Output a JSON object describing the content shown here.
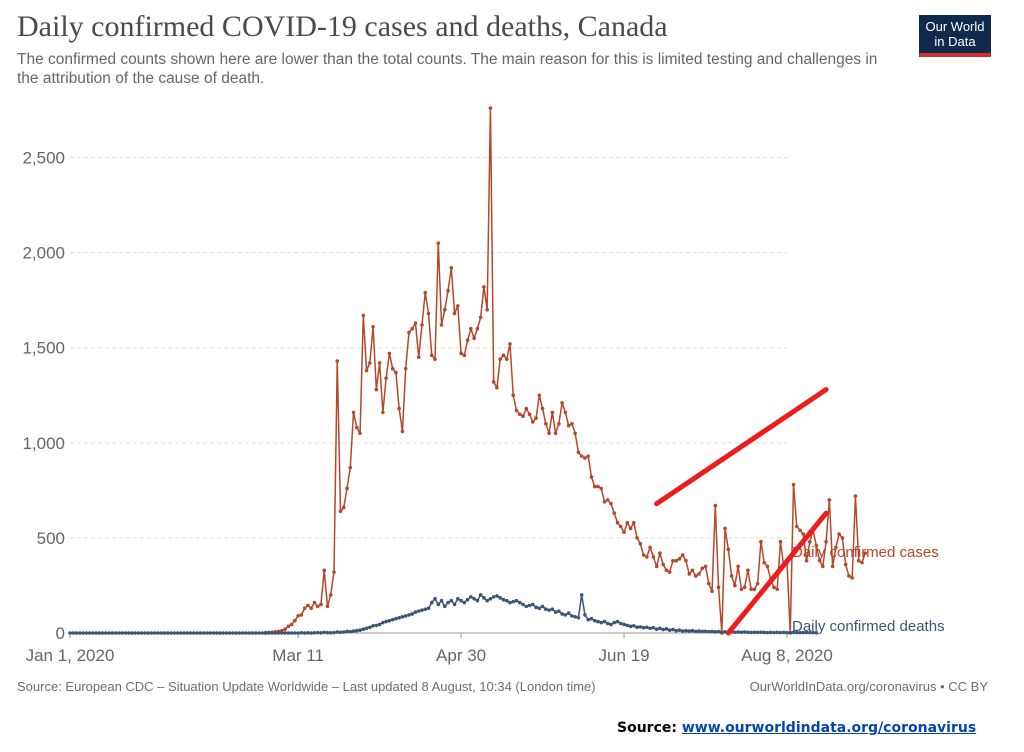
{
  "header": {
    "title": "Daily confirmed COVID-19 cases and deaths, Canada",
    "subtitle": "The confirmed counts shown here are lower than the total counts. The main reason for this is limited testing and challenges in the attribution of the cause of death.",
    "logo_line1": "Our World",
    "logo_line2": "in Data"
  },
  "footer": {
    "source": "Source: European CDC – Situation Update Worldwide – Last updated 8 August, 10:34 (London time)",
    "credit": "OurWorldInData.org/coronavirus • CC BY"
  },
  "source_note": {
    "label": "Source:",
    "link": "www.ourworldindata.org/coronavirus"
  },
  "colors": {
    "cases": "#b5472a",
    "deaths": "#3d5575",
    "annotation": "#ee1c1c"
  },
  "chart_data": {
    "type": "line",
    "x_range": [
      "2020-01-01",
      "2020-08-08"
    ],
    "ylim": [
      0,
      2750
    ],
    "y_ticks": [
      0,
      500,
      1000,
      1500,
      2000,
      2500
    ],
    "y_tick_labels": [
      "0",
      "500",
      "1,000",
      "1,500",
      "2,000",
      "2,500"
    ],
    "x_ticks": [
      "2020-01-01",
      "2020-03-11",
      "2020-04-30",
      "2020-06-19",
      "2020-08-08"
    ],
    "x_tick_labels": [
      "Jan 1, 2020",
      "Mar 11",
      "Apr 30",
      "Jun 19",
      "Aug 8, 2020"
    ],
    "grid": true,
    "legend": "end-of-line labels",
    "series": [
      {
        "name": "Daily confirmed cases",
        "start": "2020-03-01",
        "values": [
          2,
          3,
          4,
          6,
          8,
          12,
          20,
          35,
          45,
          65,
          90,
          95,
          130,
          145,
          130,
          160,
          140,
          150,
          330,
          140,
          200,
          320,
          1430,
          640,
          660,
          760,
          870,
          1160,
          1080,
          1050,
          1670,
          1380,
          1420,
          1610,
          1280,
          1420,
          1160,
          1340,
          1470,
          1390,
          1370,
          1180,
          1060,
          1390,
          1580,
          1600,
          1630,
          1450,
          1620,
          1790,
          1680,
          1460,
          1440,
          2050,
          1620,
          1700,
          1800,
          1920,
          1680,
          1720,
          1470,
          1460,
          1540,
          1600,
          1550,
          1600,
          1660,
          1820,
          1700,
          2760,
          1320,
          1290,
          1440,
          1460,
          1440,
          1520,
          1250,
          1170,
          1150,
          1140,
          1180,
          1150,
          1110,
          1130,
          1250,
          1180,
          1100,
          1050,
          1160,
          1050,
          1100,
          1210,
          1160,
          1090,
          1100,
          1050,
          950,
          930,
          920,
          930,
          820,
          770,
          770,
          760,
          690,
          700,
          680,
          630,
          580,
          560,
          530,
          580,
          550,
          580,
          500,
          470,
          410,
          400,
          450,
          400,
          350,
          420,
          360,
          330,
          320,
          380,
          380,
          390,
          410,
          380,
          310,
          330,
          300,
          310,
          340,
          350,
          260,
          220,
          670,
          240,
          0,
          550,
          440,
          300,
          250,
          350,
          230,
          240,
          330,
          230,
          230,
          260,
          480,
          370,
          350,
          280,
          240,
          230,
          480,
          350,
          370,
          0,
          780,
          560,
          540,
          520,
          380,
          480,
          540,
          460,
          380,
          350,
          480,
          700,
          350,
          450,
          520,
          500,
          360,
          300,
          290,
          720,
          380,
          370,
          420
        ]
      },
      {
        "name": "Daily confirmed deaths",
        "start": "2020-03-01",
        "values": [
          0,
          0,
          0,
          0,
          0,
          0,
          0,
          0,
          0,
          0,
          0,
          1,
          0,
          1,
          0,
          1,
          2,
          1,
          3,
          2,
          1,
          2,
          5,
          4,
          5,
          8,
          7,
          10,
          12,
          15,
          20,
          25,
          30,
          38,
          40,
          45,
          55,
          60,
          65,
          70,
          75,
          80,
          85,
          90,
          95,
          100,
          110,
          115,
          120,
          125,
          130,
          160,
          180,
          150,
          170,
          140,
          160,
          170,
          150,
          180,
          170,
          160,
          175,
          190,
          180,
          170,
          200,
          185,
          170,
          180,
          190,
          195,
          185,
          175,
          170,
          160,
          165,
          170,
          160,
          150,
          140,
          145,
          150,
          135,
          130,
          140,
          125,
          120,
          125,
          110,
          115,
          100,
          95,
          105,
          90,
          85,
          80,
          200,
          95,
          70,
          75,
          65,
          60,
          55,
          60,
          50,
          45,
          55,
          60,
          50,
          45,
          40,
          35,
          38,
          30,
          32,
          28,
          30,
          25,
          28,
          20,
          25,
          18,
          22,
          15,
          18,
          12,
          15,
          10,
          12,
          10,
          12,
          8,
          10,
          8,
          9,
          7,
          8,
          6,
          7,
          5,
          6,
          5,
          6,
          4,
          5,
          4,
          5,
          4,
          3,
          4,
          3,
          4,
          3,
          2,
          3,
          2,
          3,
          2,
          3,
          2,
          2,
          3,
          2,
          2,
          2,
          3,
          2,
          2,
          1
        ]
      }
    ],
    "annotation_lines": [
      {
        "from": [
          "2020-06-29",
          680
        ],
        "to": [
          "2020-08-20",
          1280
        ]
      },
      {
        "from": [
          "2020-07-21",
          0
        ],
        "to": [
          "2020-08-20",
          630
        ]
      }
    ]
  }
}
